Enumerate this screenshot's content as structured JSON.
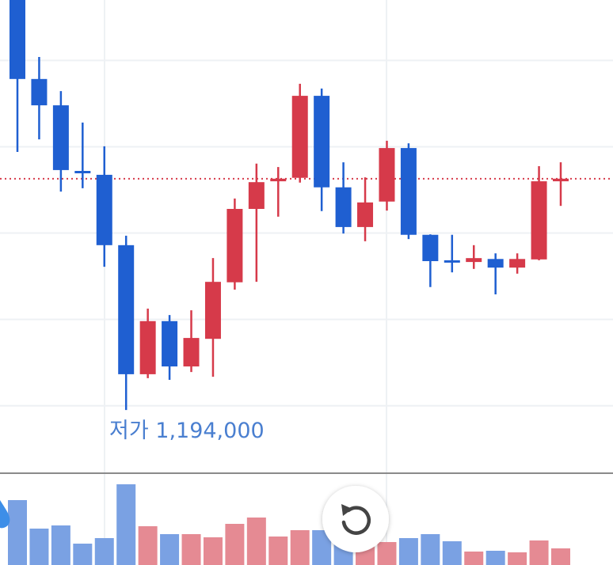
{
  "chart_data": {
    "type": "candlestick",
    "ylim": [
      1179000,
      1289000
    ],
    "yticks": [
      1275000,
      1255000,
      1235000,
      1215000,
      1195000
    ],
    "grid": true,
    "up_color": "#d63a4a",
    "down_color": "#1f5fd1",
    "open": [
      1289000,
      1270700,
      1264600,
      1249400,
      1248500,
      1232200,
      1202300,
      1214600,
      1204100,
      1210500,
      1223600,
      1240600,
      1247000,
      1247800,
      1266800,
      1245600,
      1236400,
      1242300,
      1254700,
      1234600,
      1228700,
      1228300,
      1229000,
      1227000,
      1228900,
      1247000
    ],
    "high": [
      1294500,
      1275800,
      1267900,
      1260600,
      1255100,
      1234400,
      1217500,
      1216000,
      1217100,
      1229200,
      1243000,
      1251100,
      1250300,
      1269600,
      1268500,
      1251400,
      1247900,
      1256400,
      1255800,
      1234700,
      1234600,
      1232200,
      1230300,
      1230300,
      1250500,
      1251400
    ],
    "low": [
      1253800,
      1256700,
      1244600,
      1245400,
      1227200,
      1194000,
      1201400,
      1201000,
      1202800,
      1201700,
      1221900,
      1223700,
      1238800,
      1246700,
      1240100,
      1234900,
      1233100,
      1240200,
      1233600,
      1222500,
      1225900,
      1226700,
      1220800,
      1225600,
      1228700,
      1241300
    ],
    "close": [
      1270700,
      1264600,
      1249600,
      1248900,
      1232200,
      1202300,
      1214600,
      1204100,
      1210700,
      1223700,
      1240600,
      1246800,
      1247600,
      1266800,
      1245600,
      1236400,
      1242100,
      1254700,
      1234600,
      1228500,
      1228300,
      1229200,
      1227000,
      1229000,
      1247000,
      1247600
    ],
    "volume": [
      82,
      46,
      50,
      27,
      34,
      102,
      49,
      39,
      39,
      35,
      52,
      60,
      36,
      44,
      44,
      38,
      36,
      29,
      34,
      39,
      30,
      17,
      18,
      16,
      31,
      21
    ],
    "volume_lim": [
      0,
      114
    ],
    "volume_up_color": "#e58a93",
    "volume_down_color": "#7aa1e3",
    "annotation": "저가 1,194,000"
  }
}
